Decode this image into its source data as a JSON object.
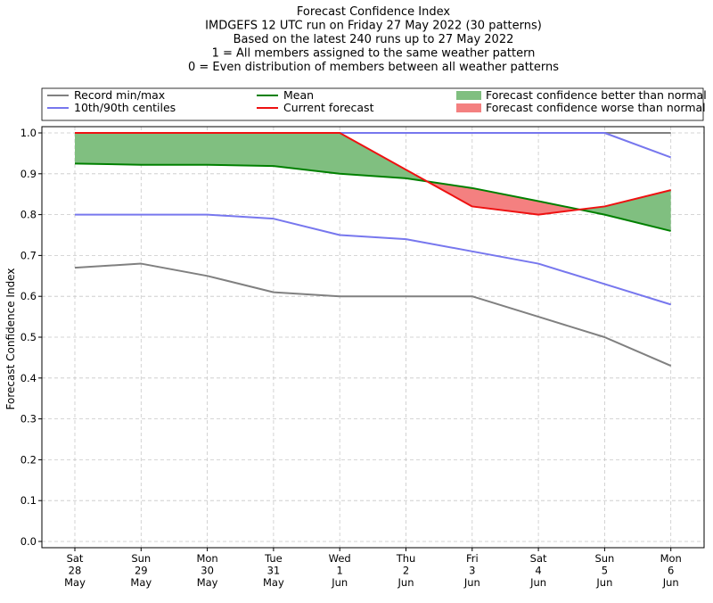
{
  "chart_data": {
    "type": "line",
    "title_lines": [
      "Forecast Confidence Index",
      "IMDGEFS 12 UTC run on Friday 27 May 2022 (30 patterns)",
      "Based on the latest 240 runs up to 27 May 2022",
      "1 = All members assigned to the same weather pattern",
      "0 = Even distribution of members between all weather patterns"
    ],
    "ylabel": "Forecast Confidence Index",
    "ylim": [
      0,
      1
    ],
    "yticks": [
      "0.0",
      "0.1",
      "0.2",
      "0.3",
      "0.4",
      "0.5",
      "0.6",
      "0.7",
      "0.8",
      "0.9",
      "1.0"
    ],
    "categories": [
      [
        "Sat",
        "28",
        "May"
      ],
      [
        "Sun",
        "29",
        "May"
      ],
      [
        "Mon",
        "30",
        "May"
      ],
      [
        "Tue",
        "31",
        "May"
      ],
      [
        "Wed",
        "1",
        "Jun"
      ],
      [
        "Thu",
        "2",
        "Jun"
      ],
      [
        "Fri",
        "3",
        "Jun"
      ],
      [
        "Sat",
        "4",
        "Jun"
      ],
      [
        "Sun",
        "5",
        "Jun"
      ],
      [
        "Mon",
        "6",
        "Jun"
      ]
    ],
    "grid": true,
    "legend": {
      "placement": "top",
      "entries": [
        {
          "label": "Record min/max",
          "kind": "line",
          "color": "#808080"
        },
        {
          "label": "10th/90th centiles",
          "kind": "line",
          "color": "#7777ee"
        },
        {
          "label": "Mean",
          "kind": "line",
          "color": "#008000"
        },
        {
          "label": "Current forecast",
          "kind": "line",
          "color": "#ee1111"
        },
        {
          "label": "Forecast confidence better than normal",
          "kind": "patch",
          "color": "#80bf80"
        },
        {
          "label": "Forecast confidence worse than normal",
          "kind": "patch",
          "color": "#f48080"
        }
      ]
    },
    "series": [
      {
        "name": "Record min",
        "color": "#808080",
        "values": [
          0.67,
          0.68,
          0.65,
          0.61,
          0.6,
          0.6,
          0.6,
          0.55,
          0.5,
          0.43
        ]
      },
      {
        "name": "Record max",
        "color": "#808080",
        "values": [
          1.0,
          1.0,
          1.0,
          1.0,
          1.0,
          1.0,
          1.0,
          1.0,
          1.0,
          1.0
        ]
      },
      {
        "name": "10th centile",
        "color": "#7777ee",
        "values": [
          0.8,
          0.8,
          0.8,
          0.79,
          0.75,
          0.74,
          0.71,
          0.68,
          0.63,
          0.58
        ]
      },
      {
        "name": "90th centile",
        "color": "#7777ee",
        "values": [
          1.0,
          1.0,
          1.0,
          1.0,
          1.0,
          1.0,
          1.0,
          1.0,
          1.0,
          0.94
        ]
      },
      {
        "name": "Mean",
        "color": "#008000",
        "values": [
          0.925,
          0.922,
          0.922,
          0.919,
          0.9,
          0.889,
          0.865,
          0.833,
          0.8,
          0.76
        ]
      },
      {
        "name": "Current forecast",
        "color": "#ee1111",
        "values": [
          1.0,
          1.0,
          1.0,
          1.0,
          1.0,
          0.91,
          0.82,
          0.8,
          0.82,
          0.86
        ]
      }
    ],
    "fill_better_color": "#80bf80",
    "fill_worse_color": "#f48080"
  }
}
